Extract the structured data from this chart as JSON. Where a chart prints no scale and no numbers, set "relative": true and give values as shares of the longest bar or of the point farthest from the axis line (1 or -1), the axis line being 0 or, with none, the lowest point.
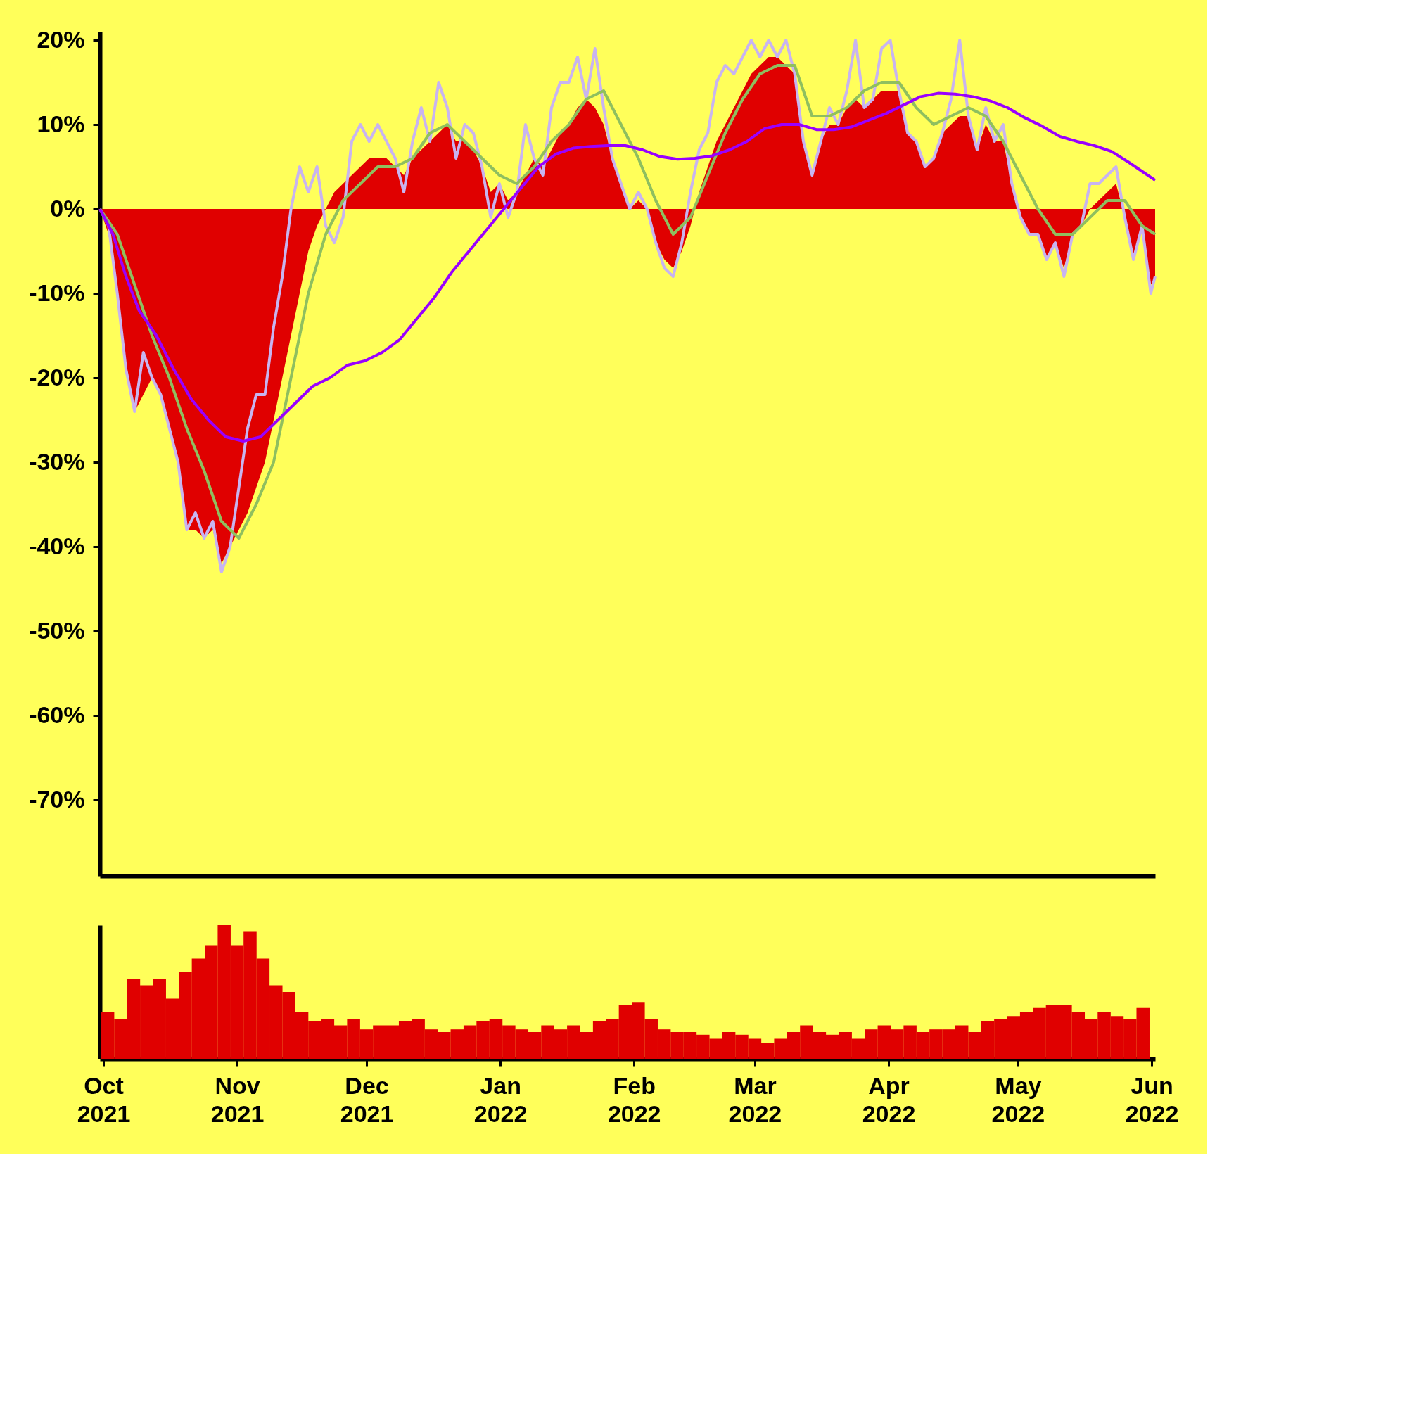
{
  "chart_data": [
    {
      "type": "line",
      "xlim": [
        "2021-10-01",
        "2022-06-01"
      ],
      "ylim": [
        -79,
        21
      ],
      "yticks": [
        {
          "value": 20,
          "label": "20%"
        },
        {
          "value": 10,
          "label": "10%"
        },
        {
          "value": 0,
          "label": "0%"
        },
        {
          "value": -10,
          "label": "-10%"
        },
        {
          "value": -20,
          "label": "-20%"
        },
        {
          "value": -30,
          "label": "-30%"
        },
        {
          "value": -40,
          "label": "-40%"
        },
        {
          "value": -50,
          "label": "-50%"
        },
        {
          "value": -60,
          "label": "-60%"
        },
        {
          "value": -70,
          "label": "-70%"
        }
      ],
      "tick_labels": "y",
      "series": [
        {
          "type": "area",
          "color": "#e00000",
          "x": [
            "2021-10-01",
            "2021-10-03",
            "2021-10-05",
            "2021-10-07",
            "2021-10-09",
            "2021-10-11",
            "2021-10-13",
            "2021-10-15",
            "2021-10-17",
            "2021-10-19",
            "2021-10-21",
            "2021-10-23",
            "2021-10-25",
            "2021-10-27",
            "2021-10-29",
            "2021-10-31",
            "2021-11-02",
            "2021-11-04",
            "2021-11-06",
            "2021-11-08",
            "2021-11-10",
            "2021-11-12",
            "2021-11-14",
            "2021-11-16",
            "2021-11-18",
            "2021-11-20",
            "2021-11-22",
            "2021-11-24",
            "2021-11-26",
            "2021-11-28",
            "2021-11-30",
            "2021-12-02",
            "2021-12-04",
            "2021-12-06",
            "2021-12-08",
            "2021-12-10",
            "2021-12-12",
            "2021-12-14",
            "2021-12-16",
            "2021-12-18",
            "2021-12-20",
            "2021-12-22",
            "2021-12-24",
            "2021-12-26",
            "2021-12-28",
            "2021-12-30",
            "2022-01-01",
            "2022-01-03",
            "2022-01-05",
            "2022-01-07",
            "2022-01-09",
            "2022-01-11",
            "2022-01-13",
            "2022-01-15",
            "2022-01-17",
            "2022-01-19",
            "2022-01-21",
            "2022-01-23",
            "2022-01-25",
            "2022-01-27",
            "2022-01-29",
            "2022-01-31",
            "2022-02-02",
            "2022-02-04",
            "2022-02-06",
            "2022-02-08",
            "2022-02-10",
            "2022-02-12",
            "2022-02-14",
            "2022-02-16",
            "2022-02-18",
            "2022-02-20",
            "2022-02-22",
            "2022-02-24",
            "2022-02-26",
            "2022-02-28",
            "2022-03-02",
            "2022-03-04",
            "2022-03-06",
            "2022-03-08",
            "2022-03-10",
            "2022-03-12",
            "2022-03-14",
            "2022-03-16",
            "2022-03-18",
            "2022-03-20",
            "2022-03-22",
            "2022-03-24",
            "2022-03-26",
            "2022-03-28",
            "2022-03-30",
            "2022-04-01",
            "2022-04-03",
            "2022-04-05",
            "2022-04-07",
            "2022-04-09",
            "2022-04-11",
            "2022-04-13",
            "2022-04-15",
            "2022-04-17",
            "2022-04-19",
            "2022-04-21",
            "2022-04-23",
            "2022-04-25",
            "2022-04-27",
            "2022-04-29",
            "2022-05-01",
            "2022-05-03",
            "2022-05-05",
            "2022-05-07",
            "2022-05-09",
            "2022-05-11",
            "2022-05-13",
            "2022-05-15",
            "2022-05-17",
            "2022-05-19",
            "2022-05-21",
            "2022-05-23",
            "2022-05-25",
            "2022-05-27",
            "2022-05-29",
            "2022-05-31",
            "2022-06-01"
          ],
          "values": [
            0,
            -3,
            -10,
            -19,
            -24,
            -22,
            -20,
            -22,
            -26,
            -30,
            -38,
            -38,
            -39,
            -38,
            -42,
            -40,
            -38,
            -36,
            -33,
            -30,
            -25,
            -20,
            -15,
            -10,
            -5,
            -2,
            0,
            2,
            3,
            4,
            5,
            6,
            6,
            6,
            5,
            4,
            6,
            7,
            8,
            9,
            10,
            8,
            8,
            7,
            5,
            2,
            3,
            1,
            2,
            4,
            6,
            5,
            7,
            9,
            10,
            12,
            13,
            12,
            10,
            6,
            3,
            0,
            1,
            0,
            -4,
            -6,
            -7,
            -5,
            -2,
            2,
            5,
            8,
            10,
            12,
            14,
            16,
            17,
            18,
            18,
            17,
            16,
            8,
            4,
            8,
            10,
            10,
            12,
            13,
            12,
            13,
            14,
            14,
            14,
            9,
            8,
            5,
            6,
            9,
            10,
            11,
            11,
            7,
            10,
            8,
            8,
            3,
            -1,
            -3,
            -3,
            -6,
            -4,
            -7,
            -3,
            -2,
            0,
            1,
            2,
            3,
            -1,
            -6,
            -2,
            -9,
            -8
          ]
        },
        {
          "type": "line",
          "color": "#c8b4f0",
          "x": [
            "2021-10-01",
            "2021-10-03",
            "2021-10-05",
            "2021-10-07",
            "2021-10-09",
            "2021-10-11",
            "2021-10-13",
            "2021-10-15",
            "2021-10-17",
            "2021-10-19",
            "2021-10-21",
            "2021-10-23",
            "2021-10-25",
            "2021-10-27",
            "2021-10-29",
            "2021-10-31",
            "2021-11-02",
            "2021-11-04",
            "2021-11-06",
            "2021-11-08",
            "2021-11-10",
            "2021-11-12",
            "2021-11-14",
            "2021-11-16",
            "2021-11-18",
            "2021-11-20",
            "2021-11-22",
            "2021-11-24",
            "2021-11-26",
            "2021-11-28",
            "2021-11-30",
            "2021-12-02",
            "2021-12-04",
            "2021-12-06",
            "2021-12-08",
            "2021-12-10",
            "2021-12-12",
            "2021-12-14",
            "2021-12-16",
            "2021-12-18",
            "2021-12-20",
            "2021-12-22",
            "2021-12-24",
            "2021-12-26",
            "2021-12-28",
            "2021-12-30",
            "2022-01-01",
            "2022-01-03",
            "2022-01-05",
            "2022-01-07",
            "2022-01-09",
            "2022-01-11",
            "2022-01-13",
            "2022-01-15",
            "2022-01-17",
            "2022-01-19",
            "2022-01-21",
            "2022-01-23",
            "2022-01-25",
            "2022-01-27",
            "2022-01-29",
            "2022-01-31",
            "2022-02-02",
            "2022-02-04",
            "2022-02-06",
            "2022-02-08",
            "2022-02-10",
            "2022-02-12",
            "2022-02-14",
            "2022-02-16",
            "2022-02-18",
            "2022-02-20",
            "2022-02-22",
            "2022-02-24",
            "2022-02-26",
            "2022-02-28",
            "2022-03-02",
            "2022-03-04",
            "2022-03-06",
            "2022-03-08",
            "2022-03-10",
            "2022-03-12",
            "2022-03-14",
            "2022-03-16",
            "2022-03-18",
            "2022-03-20",
            "2022-03-22",
            "2022-03-24",
            "2022-03-26",
            "2022-03-28",
            "2022-03-30",
            "2022-04-01",
            "2022-04-03",
            "2022-04-05",
            "2022-04-07",
            "2022-04-09",
            "2022-04-11",
            "2022-04-13",
            "2022-04-15",
            "2022-04-17",
            "2022-04-19",
            "2022-04-21",
            "2022-04-23",
            "2022-04-25",
            "2022-04-27",
            "2022-04-29",
            "2022-05-01",
            "2022-05-03",
            "2022-05-05",
            "2022-05-07",
            "2022-05-09",
            "2022-05-11",
            "2022-05-13",
            "2022-05-15",
            "2022-05-17",
            "2022-05-19",
            "2022-05-21",
            "2022-05-23",
            "2022-05-25",
            "2022-05-27",
            "2022-05-29",
            "2022-05-31",
            "2022-06-01"
          ],
          "values": [
            0,
            -2,
            -10,
            -19,
            -24,
            -17,
            -20,
            -22,
            -26,
            -30,
            -38,
            -36,
            -39,
            -37,
            -43,
            -40,
            -33,
            -26,
            -22,
            -22,
            -14,
            -8,
            0,
            5,
            2,
            5,
            -2,
            -4,
            -1,
            8,
            10,
            8,
            10,
            8,
            6,
            2,
            8,
            12,
            8,
            15,
            12,
            6,
            10,
            9,
            5,
            -1,
            3,
            -1,
            2,
            10,
            6,
            4,
            12,
            15,
            15,
            18,
            13,
            19,
            12,
            6,
            3,
            0,
            2,
            0,
            -4,
            -7,
            -8,
            -4,
            2,
            7,
            9,
            15,
            17,
            16,
            18,
            20,
            18,
            20,
            18,
            20,
            16,
            8,
            4,
            8,
            12,
            10,
            14,
            20,
            12,
            13,
            19,
            20,
            14,
            9,
            8,
            5,
            6,
            9,
            13,
            20,
            11,
            7,
            12,
            8,
            10,
            3,
            -1,
            -3,
            -3,
            -6,
            -4,
            -8,
            -3,
            -2,
            3,
            3,
            4,
            5,
            -1,
            -6,
            -2,
            -10,
            -8
          ]
        },
        {
          "type": "line",
          "color": "#8fbf5f",
          "x": [
            "2021-10-01",
            "2021-10-05",
            "2021-10-09",
            "2021-10-13",
            "2021-10-17",
            "2021-10-21",
            "2021-10-25",
            "2021-10-29",
            "2021-11-02",
            "2021-11-06",
            "2021-11-10",
            "2021-11-14",
            "2021-11-18",
            "2021-11-22",
            "2021-11-26",
            "2021-11-30",
            "2021-12-04",
            "2021-12-08",
            "2021-12-12",
            "2021-12-16",
            "2021-12-20",
            "2021-12-24",
            "2021-12-28",
            "2022-01-01",
            "2022-01-05",
            "2022-01-09",
            "2022-01-13",
            "2022-01-17",
            "2022-01-21",
            "2022-01-25",
            "2022-01-29",
            "2022-02-02",
            "2022-02-06",
            "2022-02-10",
            "2022-02-14",
            "2022-02-18",
            "2022-02-22",
            "2022-02-26",
            "2022-03-02",
            "2022-03-06",
            "2022-03-10",
            "2022-03-14",
            "2022-03-18",
            "2022-03-22",
            "2022-03-26",
            "2022-03-30",
            "2022-04-03",
            "2022-04-07",
            "2022-04-11",
            "2022-04-15",
            "2022-04-19",
            "2022-04-23",
            "2022-04-27",
            "2022-05-01",
            "2022-05-05",
            "2022-05-09",
            "2022-05-13",
            "2022-05-17",
            "2022-05-21",
            "2022-05-25",
            "2022-05-29",
            "2022-06-01"
          ],
          "values": [
            0,
            -3,
            -9,
            -15,
            -20,
            -26,
            -31,
            -37,
            -39,
            -35,
            -30,
            -20,
            -10,
            -3,
            1,
            3,
            5,
            5,
            6,
            9,
            10,
            8,
            6,
            4,
            3,
            5,
            8,
            10,
            13,
            14,
            10,
            6,
            1,
            -3,
            -1,
            4,
            9,
            13,
            16,
            17,
            17,
            11,
            11,
            12,
            14,
            15,
            15,
            12,
            10,
            11,
            12,
            11,
            8,
            4,
            0,
            -3,
            -3,
            -1,
            1,
            1,
            -2,
            -3
          ]
        },
        {
          "type": "line",
          "color": "#9900ff",
          "x": [
            "2021-10-01",
            "2021-10-04",
            "2021-10-07",
            "2021-10-10",
            "2021-10-14",
            "2021-10-18",
            "2021-10-22",
            "2021-10-26",
            "2021-10-30",
            "2021-11-03",
            "2021-11-07",
            "2021-11-11",
            "2021-11-15",
            "2021-11-19",
            "2021-11-23",
            "2021-11-27",
            "2021-12-01",
            "2021-12-05",
            "2021-12-09",
            "2021-12-13",
            "2021-12-17",
            "2021-12-21",
            "2021-12-25",
            "2021-12-29",
            "2022-01-02",
            "2022-01-06",
            "2022-01-10",
            "2022-01-14",
            "2022-01-18",
            "2022-01-22",
            "2022-01-26",
            "2022-01-30",
            "2022-02-03",
            "2022-02-07",
            "2022-02-11",
            "2022-02-15",
            "2022-02-19",
            "2022-02-23",
            "2022-02-27",
            "2022-03-03",
            "2022-03-07",
            "2022-03-11",
            "2022-03-15",
            "2022-03-19",
            "2022-03-23",
            "2022-03-27",
            "2022-03-31",
            "2022-04-04",
            "2022-04-08",
            "2022-04-12",
            "2022-04-16",
            "2022-04-20",
            "2022-04-24",
            "2022-04-28",
            "2022-05-02",
            "2022-05-06",
            "2022-05-10",
            "2022-05-14",
            "2022-05-18",
            "2022-05-22",
            "2022-05-26",
            "2022-06-01"
          ],
          "values": [
            0,
            -3,
            -8,
            -12,
            -15,
            -19,
            -22.5,
            -25,
            -27,
            -27.5,
            -27,
            -25,
            -23,
            -21,
            -20,
            -18.5,
            -18,
            -17,
            -15.5,
            -13,
            -10.5,
            -7.5,
            -5,
            -2.5,
            0,
            2.5,
            5,
            6.5,
            7.2,
            7.4,
            7.5,
            7.5,
            7,
            6.2,
            5.9,
            6,
            6.3,
            7,
            8,
            9.5,
            10,
            10,
            9.4,
            9.4,
            9.7,
            10.5,
            11.3,
            12.3,
            13.3,
            13.7,
            13.6,
            13.3,
            12.8,
            12,
            10.8,
            9.8,
            8.6,
            8,
            7.5,
            6.8,
            5.5,
            3.4
          ]
        }
      ]
    },
    {
      "type": "bar",
      "relative": true,
      "color": "#e00000",
      "tick_labels": "x",
      "xlim": [
        "2021-10-01",
        "2022-06-01"
      ],
      "xticks": [
        {
          "value": "2021-10-01",
          "label": "Oct 2021"
        },
        {
          "value": "2021-11-01",
          "label": "Nov 2021"
        },
        {
          "value": "2021-12-01",
          "label": "Dec 2021"
        },
        {
          "value": "2022-01-01",
          "label": "Jan 2022"
        },
        {
          "value": "2022-02-01",
          "label": "Feb 2022"
        },
        {
          "value": "2022-03-01",
          "label": "Mar 2022"
        },
        {
          "value": "2022-04-01",
          "label": "Apr 2022"
        },
        {
          "value": "2022-05-01",
          "label": "May 2022"
        },
        {
          "value": "2022-06-01",
          "label": "Jun 2022"
        }
      ],
      "x": [
        "2021-10-02",
        "2021-10-05",
        "2021-10-08",
        "2021-10-11",
        "2021-10-14",
        "2021-10-17",
        "2021-10-20",
        "2021-10-23",
        "2021-10-26",
        "2021-10-29",
        "2021-11-01",
        "2021-11-04",
        "2021-11-07",
        "2021-11-10",
        "2021-11-13",
        "2021-11-16",
        "2021-11-19",
        "2021-11-22",
        "2021-11-25",
        "2021-11-28",
        "2021-12-01",
        "2021-12-04",
        "2021-12-07",
        "2021-12-10",
        "2021-12-13",
        "2021-12-16",
        "2021-12-19",
        "2021-12-22",
        "2021-12-25",
        "2021-12-28",
        "2021-12-31",
        "2022-01-03",
        "2022-01-06",
        "2022-01-09",
        "2022-01-12",
        "2022-01-15",
        "2022-01-18",
        "2022-01-21",
        "2022-01-24",
        "2022-01-27",
        "2022-01-30",
        "2022-02-02",
        "2022-02-05",
        "2022-02-08",
        "2022-02-11",
        "2022-02-14",
        "2022-02-17",
        "2022-02-20",
        "2022-02-23",
        "2022-02-26",
        "2022-03-01",
        "2022-03-04",
        "2022-03-07",
        "2022-03-10",
        "2022-03-13",
        "2022-03-16",
        "2022-03-19",
        "2022-03-22",
        "2022-03-25",
        "2022-03-28",
        "2022-03-31",
        "2022-04-03",
        "2022-04-06",
        "2022-04-09",
        "2022-04-12",
        "2022-04-15",
        "2022-04-18",
        "2022-04-21",
        "2022-04-24",
        "2022-04-27",
        "2022-04-30",
        "2022-05-03",
        "2022-05-06",
        "2022-05-09",
        "2022-05-12",
        "2022-05-15",
        "2022-05-18",
        "2022-05-21",
        "2022-05-24",
        "2022-05-27",
        "2022-05-30"
      ],
      "values": [
        0.35,
        0.3,
        0.6,
        0.55,
        0.6,
        0.45,
        0.65,
        0.75,
        0.85,
        1,
        0.85,
        0.95,
        0.75,
        0.55,
        0.5,
        0.35,
        0.28,
        0.3,
        0.25,
        0.3,
        0.22,
        0.25,
        0.25,
        0.28,
        0.3,
        0.22,
        0.2,
        0.22,
        0.25,
        0.28,
        0.3,
        0.25,
        0.22,
        0.2,
        0.25,
        0.22,
        0.25,
        0.2,
        0.28,
        0.3,
        0.4,
        0.42,
        0.3,
        0.22,
        0.2,
        0.2,
        0.18,
        0.15,
        0.2,
        0.18,
        0.15,
        0.12,
        0.15,
        0.2,
        0.25,
        0.2,
        0.18,
        0.2,
        0.15,
        0.22,
        0.25,
        0.22,
        0.25,
        0.2,
        0.22,
        0.22,
        0.25,
        0.2,
        0.28,
        0.3,
        0.32,
        0.35,
        0.38,
        0.4,
        0.4,
        0.35,
        0.3,
        0.35,
        0.32,
        0.3,
        0.38
      ]
    }
  ]
}
